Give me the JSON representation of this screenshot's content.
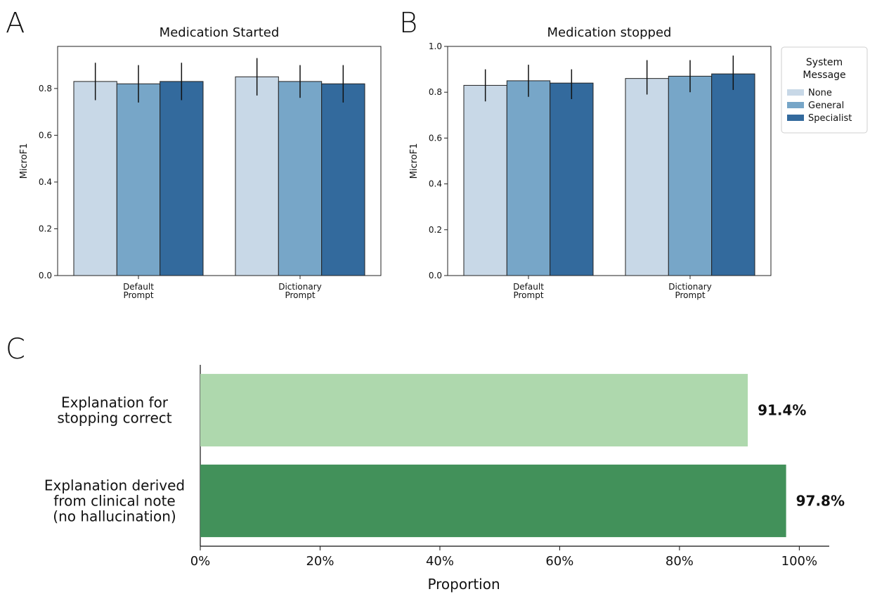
{
  "panel_letters": [
    "A",
    "B",
    "C"
  ],
  "legend": {
    "title_lines": [
      "System",
      "Message"
    ],
    "entries": [
      {
        "name": "None",
        "color": "#c8d8e7"
      },
      {
        "name": "General",
        "color": "#77a6c8"
      },
      {
        "name": "Specialist",
        "color": "#336a9d"
      }
    ]
  },
  "chart_data": [
    {
      "type": "bar",
      "title": "Medication Started",
      "ylabel": "MicroF1",
      "xlabel": "",
      "ylim": [
        0,
        0.98
      ],
      "yticks": [
        0.0,
        0.2,
        0.4,
        0.6,
        0.8
      ],
      "ytick_labels": [
        "0.0",
        "0.2",
        "0.4",
        "0.6",
        "0.8"
      ],
      "categories": [
        [
          "Default",
          "Prompt"
        ],
        [
          "Dictionary",
          "Prompt"
        ]
      ],
      "series": [
        {
          "name": "None",
          "color": "#c8d8e7",
          "values": [
            0.83,
            0.85
          ],
          "err_low": [
            0.75,
            0.77
          ],
          "err_high": [
            0.91,
            0.93
          ]
        },
        {
          "name": "General",
          "color": "#77a6c8",
          "values": [
            0.82,
            0.83
          ],
          "err_low": [
            0.74,
            0.76
          ],
          "err_high": [
            0.9,
            0.9
          ]
        },
        {
          "name": "Specialist",
          "color": "#336a9d",
          "values": [
            0.83,
            0.82
          ],
          "err_low": [
            0.75,
            0.74
          ],
          "err_high": [
            0.91,
            0.9
          ]
        }
      ],
      "grid": false,
      "legend": "none"
    },
    {
      "type": "bar",
      "title": "Medication stopped",
      "ylabel": "MicroF1",
      "xlabel": "",
      "ylim": [
        0,
        1.0
      ],
      "yticks": [
        0.0,
        0.2,
        0.4,
        0.6,
        0.8,
        1.0
      ],
      "ytick_labels": [
        "0.0",
        "0.2",
        "0.4",
        "0.6",
        "0.8",
        "1.0"
      ],
      "categories": [
        [
          "Default",
          "Prompt"
        ],
        [
          "Dictionary",
          "Prompt"
        ]
      ],
      "series": [
        {
          "name": "None",
          "color": "#c8d8e7",
          "values": [
            0.83,
            0.86
          ],
          "err_low": [
            0.76,
            0.79
          ],
          "err_high": [
            0.9,
            0.94
          ]
        },
        {
          "name": "General",
          "color": "#77a6c8",
          "values": [
            0.85,
            0.87
          ],
          "err_low": [
            0.78,
            0.8
          ],
          "err_high": [
            0.92,
            0.94
          ]
        },
        {
          "name": "Specialist",
          "color": "#336a9d",
          "values": [
            0.84,
            0.88
          ],
          "err_low": [
            0.77,
            0.81
          ],
          "err_high": [
            0.9,
            0.96
          ]
        }
      ],
      "grid": false,
      "legend": "right outside"
    },
    {
      "type": "bar",
      "orientation": "horizontal",
      "title": "",
      "xlabel": "Proportion",
      "ylabel": "",
      "xlim": [
        0,
        105
      ],
      "xticks": [
        0,
        20,
        40,
        60,
        80,
        100
      ],
      "xtick_labels": [
        "0%",
        "20%",
        "40%",
        "60%",
        "80%",
        "100%"
      ],
      "categories": [
        [
          "Explanation for",
          "stopping correct"
        ],
        [
          "Explanation derived",
          "from clinical note",
          "(no hallucination)"
        ]
      ],
      "values": [
        91.4,
        97.8
      ],
      "value_labels": [
        "91.4%",
        "97.8%"
      ],
      "colors": [
        "#aed8ad",
        "#42915a"
      ],
      "grid": false
    }
  ]
}
